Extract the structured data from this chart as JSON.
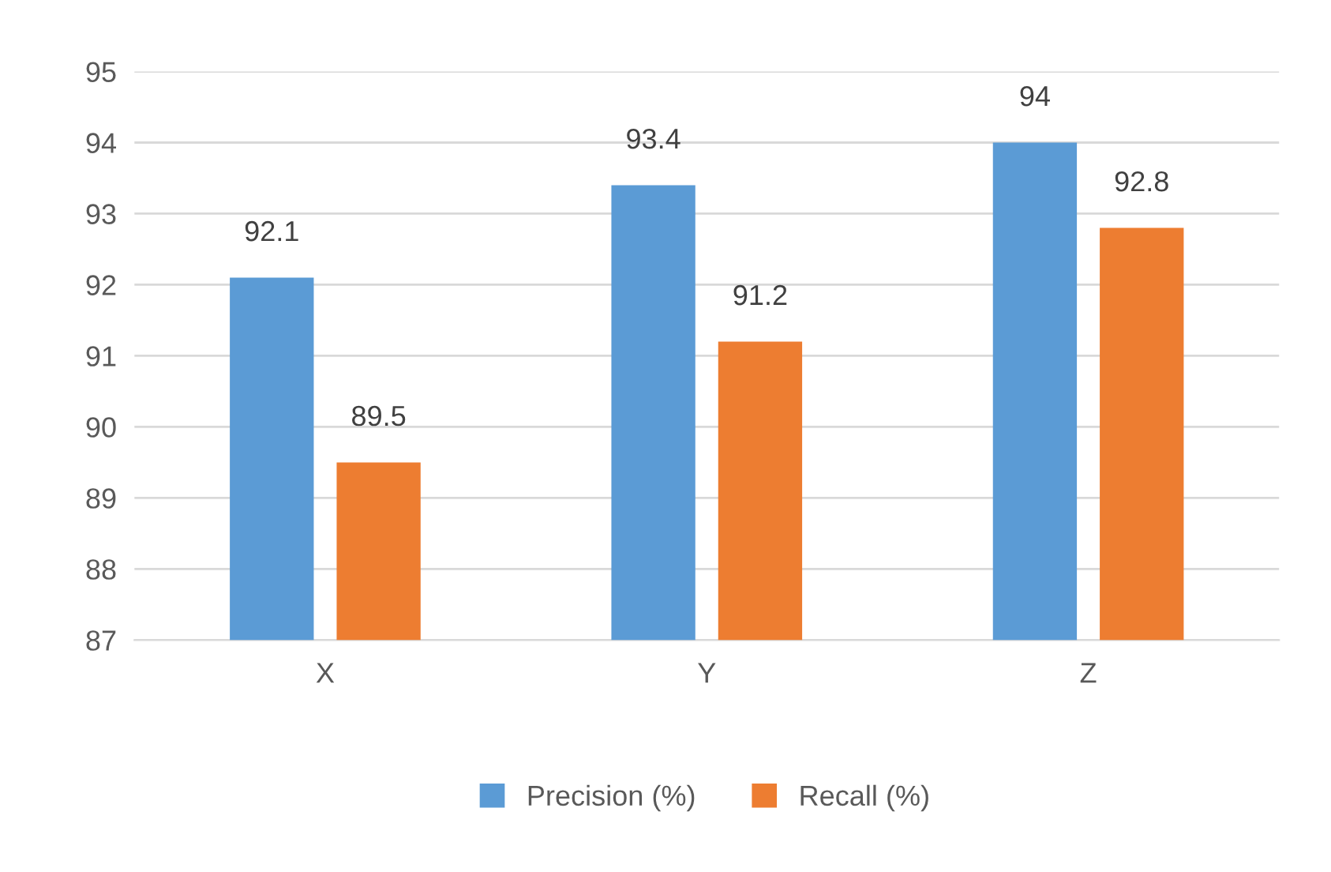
{
  "chart_data": {
    "type": "bar",
    "categories": [
      "X",
      "Y",
      "Z"
    ],
    "series": [
      {
        "name": "Precision (%)",
        "color": "#5b9bd5",
        "values": [
          92.1,
          93.4,
          94
        ]
      },
      {
        "name": "Recall (%)",
        "color": "#ed7d31",
        "values": [
          89.5,
          91.2,
          92.8
        ]
      }
    ],
    "ylim": [
      87,
      95
    ],
    "yticks": [
      87,
      88,
      89,
      90,
      91,
      92,
      93,
      94,
      95
    ],
    "grid": "y",
    "legend": "bottom",
    "data_labels": true
  }
}
